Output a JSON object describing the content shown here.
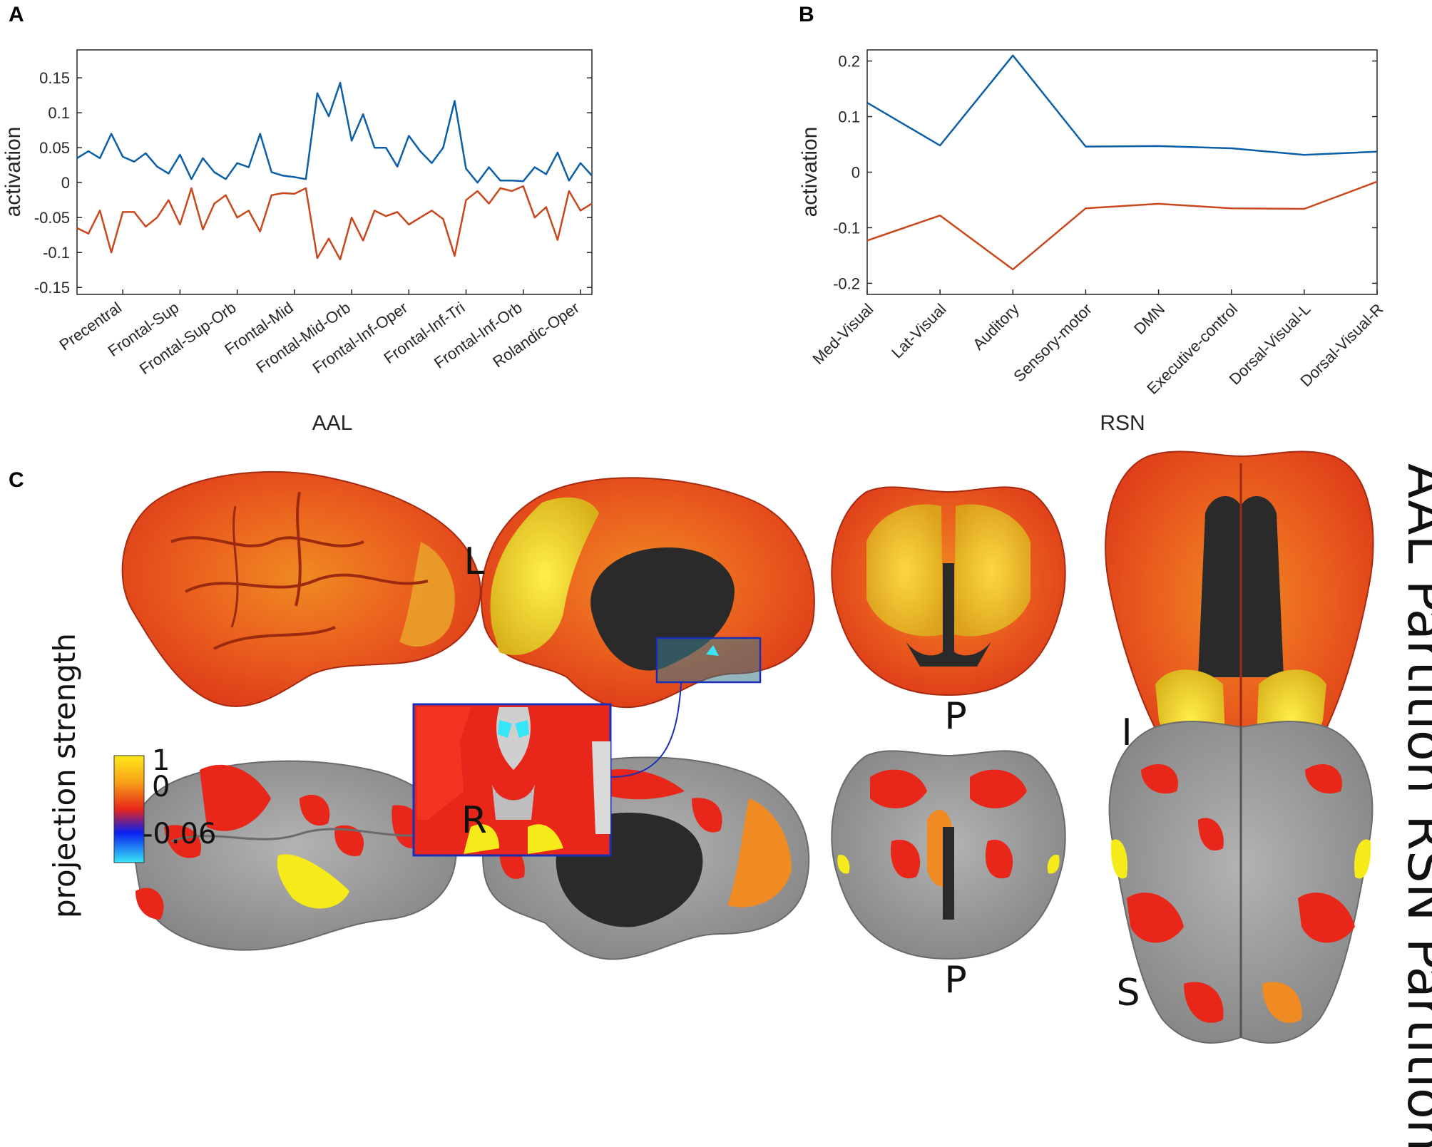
{
  "panels": {
    "A": "A",
    "B": "B",
    "C": "C"
  },
  "colors": {
    "series1": "#0b5ea8",
    "series2": "#c9471c",
    "axis": "#262626",
    "brain_gray": "#9a9a9a",
    "brain_dark": "#2a2a2a",
    "cmap_yellow": "#ffe81a",
    "cmap_orange": "#f47a20",
    "cmap_red": "#e8261a",
    "cmap_blue": "#0a1ef0",
    "cmap_cyan": "#36e6f5",
    "inset_border": "#1a2fb8"
  },
  "chart_data": [
    {
      "panel": "A",
      "type": "line",
      "xlabel": "AAL",
      "ylabel": "activation",
      "ylim": [
        -0.16,
        0.19
      ],
      "yticks": [
        0.15,
        0.1,
        0.05,
        0,
        -0.05,
        -0.1,
        -0.15
      ],
      "ytick_labels": [
        "0.15",
        "0.1",
        "0.05",
        "0",
        "-0.05",
        "-0.1",
        "-0.15"
      ],
      "xlim": [
        1,
        46
      ],
      "category_ticks": [
        {
          "x": 5,
          "label": "Precentral"
        },
        {
          "x": 10,
          "label": "Frontal-Sup"
        },
        {
          "x": 15,
          "label": "Frontal-Sup-Orb"
        },
        {
          "x": 20,
          "label": "Frontal-Mid"
        },
        {
          "x": 25,
          "label": "Frontal-Mid-Orb"
        },
        {
          "x": 30,
          "label": "Frontal-Inf-Oper"
        },
        {
          "x": 35,
          "label": "Frontal-Inf-Tri"
        },
        {
          "x": 40,
          "label": "Frontal-Inf-Orb"
        },
        {
          "x": 45,
          "label": "Rolandic-Oper"
        }
      ],
      "series": [
        {
          "color": "#0b5ea8",
          "values": [
            0.035,
            0.045,
            0.035,
            0.07,
            0.037,
            0.03,
            0.042,
            0.023,
            0.013,
            0.04,
            0.005,
            0.035,
            0.015,
            0.005,
            0.028,
            0.022,
            0.07,
            0.015,
            0.01,
            0.008,
            0.005,
            0.128,
            0.095,
            0.143,
            0.06,
            0.098,
            0.05,
            0.05,
            0.023,
            0.067,
            0.045,
            0.028,
            0.05,
            0.117,
            0.02,
            0.0,
            0.022,
            0.003,
            0.003,
            0.002,
            0.022,
            0.012,
            0.043,
            0.003,
            0.028,
            0.01
          ]
        },
        {
          "color": "#c9471c",
          "values": [
            -0.065,
            -0.073,
            -0.04,
            -0.1,
            -0.042,
            -0.042,
            -0.063,
            -0.05,
            -0.025,
            -0.06,
            -0.008,
            -0.067,
            -0.03,
            -0.018,
            -0.05,
            -0.04,
            -0.07,
            -0.018,
            -0.015,
            -0.016,
            -0.008,
            -0.108,
            -0.08,
            -0.11,
            -0.05,
            -0.083,
            -0.04,
            -0.048,
            -0.042,
            -0.06,
            -0.05,
            -0.04,
            -0.052,
            -0.105,
            -0.025,
            -0.012,
            -0.03,
            -0.008,
            -0.012,
            -0.005,
            -0.05,
            -0.035,
            -0.082,
            -0.012,
            -0.04,
            -0.03
          ]
        }
      ]
    },
    {
      "panel": "B",
      "type": "line",
      "xlabel": "RSN",
      "ylabel": "activation",
      "ylim": [
        -0.22,
        0.22
      ],
      "yticks": [
        0.2,
        0.1,
        0,
        -0.1,
        -0.2
      ],
      "ytick_labels": [
        "0.2",
        "0.1",
        "0",
        "-0.1",
        "-0.2"
      ],
      "categories": [
        "Med-Visual",
        "Lat-Visual",
        "Auditory",
        "Sensory-motor",
        "DMN",
        "Executive-control",
        "Dorsal-Visual-L",
        "Dorsal-Visual-R"
      ],
      "series": [
        {
          "color": "#0b5ea8",
          "values": [
            0.125,
            0.048,
            0.21,
            0.046,
            0.047,
            0.043,
            0.031,
            0.037
          ]
        },
        {
          "color": "#c9471c",
          "values": [
            -0.123,
            -0.078,
            -0.175,
            -0.065,
            -0.057,
            -0.065,
            -0.066,
            -0.017
          ]
        }
      ]
    }
  ],
  "brain_panel": {
    "row_labels": [
      "AAL Partition",
      "RSN Partition"
    ],
    "view_labels": {
      "left": "L",
      "right": "R",
      "posterior_top": "P",
      "inferior": "I",
      "posterior_bottom": "P",
      "superior": "S"
    },
    "colorbar": {
      "title": "projection strength",
      "ticks": [
        "1",
        "0",
        "-0.06"
      ],
      "max": 1,
      "mid": 0,
      "min": -0.06
    }
  }
}
